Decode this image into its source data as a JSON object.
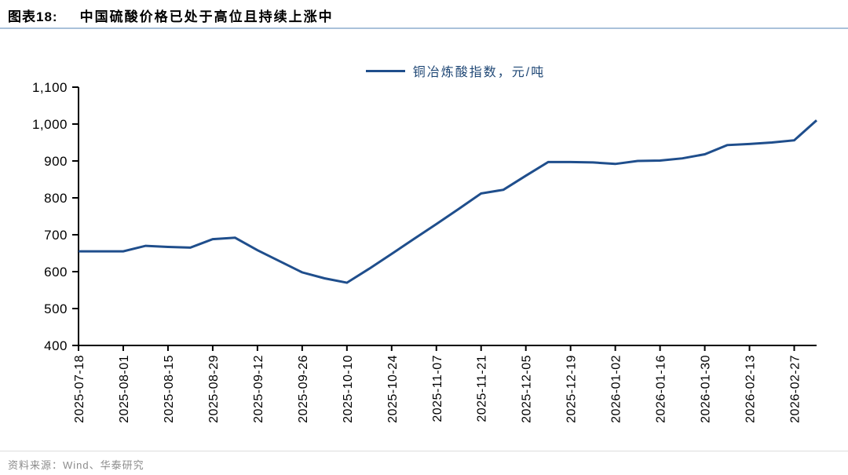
{
  "header": {
    "title_prefix": "图表18:",
    "title": "中国硫酸价格已处于高位且持续上涨中"
  },
  "legend": {
    "label": "铜冶炼酸指数，元/吨"
  },
  "source": {
    "text": "资料来源：Wind、华泰研究"
  },
  "colors": {
    "line": "#1F4E8C",
    "legend_text": "#1F4775",
    "title_underline": "#A9C1DA",
    "divider": "#DCDCDC",
    "source_text": "#8C8C8C",
    "axis": "#000000"
  },
  "chart_data": {
    "type": "line",
    "title": "中国硫酸价格已处于高位且持续上涨中",
    "xlabel": "",
    "ylabel": "",
    "ylim": [
      400,
      1100
    ],
    "y_ticks": [
      400,
      500,
      600,
      700,
      800,
      900,
      1000,
      1100
    ],
    "y_tick_labels": [
      "400",
      "500",
      "600",
      "700",
      "800",
      "900",
      "1,000",
      "1,100"
    ],
    "x_tick_labels": [
      "2025-07-18",
      "2025-08-01",
      "2025-08-15",
      "2025-08-29",
      "2025-09-12",
      "2025-09-26",
      "2025-10-10",
      "2025-10-24",
      "2025-11-07",
      "2025-11-21",
      "2025-12-05",
      "2025-12-19",
      "2026-01-02",
      "2026-01-16",
      "2026-01-30",
      "2026-02-13",
      "2026-02-27"
    ],
    "grid": false,
    "legend_position": "top-center",
    "series": [
      {
        "name": "铜冶炼酸指数，元/吨",
        "x": [
          "2025-07-18",
          "2025-07-25",
          "2025-08-01",
          "2025-08-08",
          "2025-08-15",
          "2025-08-22",
          "2025-08-29",
          "2025-09-05",
          "2025-09-12",
          "2025-09-19",
          "2025-09-26",
          "2025-10-03",
          "2025-10-10",
          "2025-10-17",
          "2025-10-24",
          "2025-10-31",
          "2025-11-07",
          "2025-11-14",
          "2025-11-21",
          "2025-11-28",
          "2025-12-05",
          "2025-12-12",
          "2025-12-19",
          "2025-12-26",
          "2026-01-02",
          "2026-01-09",
          "2026-01-16",
          "2026-01-23",
          "2026-01-30",
          "2026-02-06",
          "2026-02-13",
          "2026-02-20",
          "2026-02-27",
          "2026-03-06"
        ],
        "values": [
          655,
          655,
          655,
          670,
          667,
          665,
          688,
          692,
          658,
          628,
          598,
          582,
          570,
          608,
          648,
          689,
          729,
          770,
          812,
          822,
          860,
          897,
          897,
          896,
          892,
          900,
          901,
          907,
          918,
          943,
          946,
          950,
          956,
          1010
        ]
      }
    ]
  }
}
